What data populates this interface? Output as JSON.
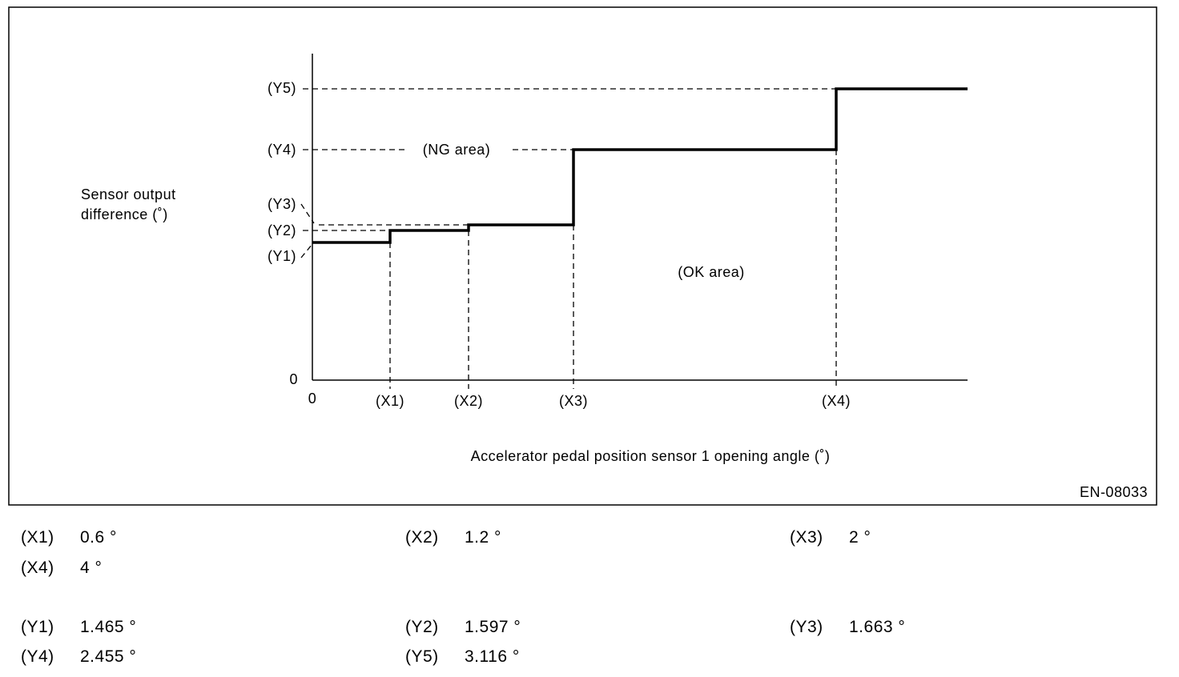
{
  "diagram": {
    "y_axis_label": [
      "Sensor output",
      "difference (˚)"
    ],
    "x_axis_label": "Accelerator pedal position sensor 1 opening angle (˚)",
    "origin_y": "0",
    "origin_x": "0",
    "x_ticks": [
      "(X1)",
      "(X2)",
      "(X3)",
      "(X4)"
    ],
    "y_ticks": [
      "(Y1)",
      "(Y2)",
      "(Y3)",
      "(Y4)",
      "(Y5)"
    ],
    "regions": [
      "(NG area)",
      "(OK area)"
    ],
    "figure_id": "EN-08033"
  },
  "legend": [
    {
      "key": "(X1)",
      "value": "0.6 °"
    },
    {
      "key": "(X2)",
      "value": "1.2 °"
    },
    {
      "key": "(X3)",
      "value": "2 °"
    },
    {
      "key": "(X4)",
      "value": "4 °"
    },
    {
      "key": "(Y1)",
      "value": "1.465 °"
    },
    {
      "key": "(Y2)",
      "value": "1.597 °"
    },
    {
      "key": "(Y3)",
      "value": "1.663 °"
    },
    {
      "key": "(Y4)",
      "value": "2.455 °"
    },
    {
      "key": "(Y5)",
      "value": "3.116 °"
    }
  ]
}
